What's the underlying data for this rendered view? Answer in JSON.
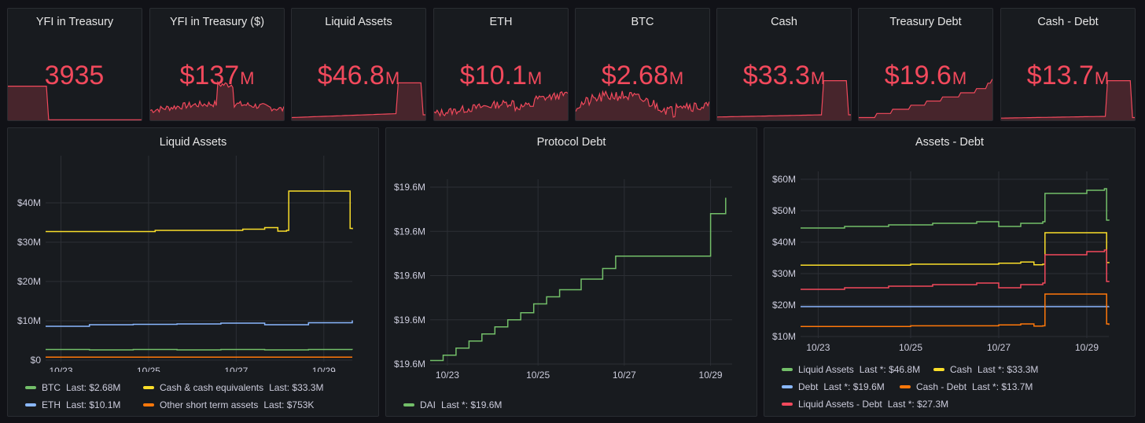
{
  "colors": {
    "stat_red": "#f2495c",
    "green": "#73bf69",
    "yellow": "#fade2a",
    "blue": "#8ab8ff",
    "orange": "#ff780a",
    "red": "#f2495c",
    "panel_bg": "#181b1f",
    "page_bg": "#111217"
  },
  "stats": [
    {
      "title": "YFI in Treasury",
      "value": "3935",
      "unit": "",
      "spark": "yfi_count"
    },
    {
      "title": "YFI in Treasury ($)",
      "value": "$137",
      "unit": "M",
      "spark": "yfi_usd"
    },
    {
      "title": "Liquid Assets",
      "value": "$46.8",
      "unit": "M",
      "spark": "liquid"
    },
    {
      "title": "ETH",
      "value": "$10.1",
      "unit": "M",
      "spark": "eth"
    },
    {
      "title": "BTC",
      "value": "$2.68",
      "unit": "M",
      "spark": "btc"
    },
    {
      "title": "Cash",
      "value": "$33.3",
      "unit": "M",
      "spark": "cash"
    },
    {
      "title": "Treasury Debt",
      "value": "$19.6",
      "unit": "M",
      "spark": "debt"
    },
    {
      "title": "Cash - Debt",
      "value": "$13.7",
      "unit": "M",
      "spark": "cashdebt"
    }
  ],
  "panels": {
    "liquid_assets": {
      "title": "Liquid Assets"
    },
    "protocol_debt": {
      "title": "Protocol Debt"
    },
    "assets_debt": {
      "title": "Assets - Debt"
    }
  },
  "chart_data": [
    {
      "type": "line",
      "title": "Liquid Assets",
      "x_ticks": [
        "10/23",
        "10/25",
        "10/27",
        "10/29"
      ],
      "y_ticks": [
        "$0",
        "$10M",
        "$20M",
        "$30M",
        "$40M"
      ],
      "ylim": [
        0,
        50
      ],
      "series": [
        {
          "name": "BTC",
          "color": "#73bf69",
          "last": "Last: $2.68M",
          "x": [
            0,
            1,
            2,
            3,
            4,
            5,
            6,
            7
          ],
          "values": [
            2.7,
            2.6,
            2.7,
            2.6,
            2.7,
            2.6,
            2.7,
            2.68
          ]
        },
        {
          "name": "Cash & cash equivalents",
          "color": "#fade2a",
          "last": "Last: $33.3M",
          "x": [
            0,
            2.5,
            4.5,
            5.0,
            5.3,
            5.5,
            5.55,
            6.9,
            6.95,
            7.0
          ],
          "values": [
            32.7,
            33.0,
            33.3,
            33.7,
            32.8,
            33.0,
            43.0,
            43.0,
            33.5,
            33.3
          ]
        },
        {
          "name": "ETH",
          "color": "#8ab8ff",
          "last": "Last: $10.1M",
          "x": [
            0,
            1,
            2,
            3,
            4,
            5,
            6,
            7
          ],
          "values": [
            8.6,
            9.0,
            9.1,
            9.2,
            9.4,
            9.0,
            9.5,
            10.1
          ]
        },
        {
          "name": "Other short term assets",
          "color": "#ff780a",
          "last": "Last: $753K",
          "x": [
            0,
            7
          ],
          "values": [
            0.75,
            0.75
          ]
        }
      ]
    },
    {
      "type": "line",
      "title": "Protocol Debt",
      "x_ticks": [
        "10/23",
        "10/25",
        "10/27",
        "10/29"
      ],
      "y_ticks": [
        "$19.6M",
        "$19.6M",
        "$19.6M",
        "$19.6M",
        "$19.6M"
      ],
      "ylim": [
        0,
        1
      ],
      "series": [
        {
          "name": "DAI",
          "color": "#73bf69",
          "last": "Last *: $19.6M",
          "x": [
            0,
            0.3,
            0.6,
            0.9,
            1.2,
            1.5,
            1.8,
            2.1,
            2.4,
            2.7,
            3.0,
            3.5,
            4.0,
            4.3,
            5.5,
            6.5,
            6.8,
            6.85
          ],
          "values": [
            0.02,
            0.05,
            0.09,
            0.13,
            0.17,
            0.21,
            0.25,
            0.29,
            0.34,
            0.38,
            0.42,
            0.48,
            0.54,
            0.61,
            0.61,
            0.85,
            0.85,
            0.94
          ]
        }
      ]
    },
    {
      "type": "line",
      "title": "Assets - Debt",
      "x_ticks": [
        "10/23",
        "10/25",
        "10/27",
        "10/29"
      ],
      "y_ticks": [
        "$10M",
        "$20M",
        "$30M",
        "$40M",
        "$50M",
        "$60M"
      ],
      "ylim": [
        10,
        60
      ],
      "series": [
        {
          "name": "Liquid Assets",
          "color": "#73bf69",
          "last": "Last *: $46.8M",
          "x": [
            0,
            1,
            2,
            3,
            4,
            4.5,
            5.0,
            5.5,
            5.55,
            6.5,
            6.9,
            6.95,
            7.0
          ],
          "values": [
            44.5,
            45.0,
            45.5,
            46.0,
            46.5,
            45.0,
            46.0,
            46.5,
            55.5,
            56.5,
            57.0,
            47.0,
            46.8
          ]
        },
        {
          "name": "Cash",
          "color": "#fade2a",
          "last": "Last *: $33.3M",
          "x": [
            0,
            2.5,
            4.5,
            5.0,
            5.3,
            5.5,
            5.55,
            6.9,
            6.95,
            7.0
          ],
          "values": [
            32.7,
            33.0,
            33.3,
            33.7,
            32.8,
            33.0,
            43.0,
            43.0,
            33.5,
            33.3
          ]
        },
        {
          "name": "Debt",
          "color": "#8ab8ff",
          "last": "Last *: $19.6M",
          "x": [
            0,
            7
          ],
          "values": [
            19.5,
            19.6
          ]
        },
        {
          "name": "Cash - Debt",
          "color": "#ff780a",
          "last": "Last *: $13.7M",
          "x": [
            0,
            2.5,
            4.5,
            5.0,
            5.3,
            5.5,
            5.55,
            6.9,
            6.95,
            7.0
          ],
          "values": [
            13.2,
            13.4,
            13.7,
            14.0,
            13.3,
            13.4,
            23.5,
            23.5,
            14.0,
            13.7
          ]
        },
        {
          "name": "Liquid Assets - Debt",
          "color": "#f2495c",
          "last": "Last *: $27.3M",
          "x": [
            0,
            1,
            2,
            3,
            4,
            4.5,
            5.0,
            5.5,
            5.55,
            6.5,
            6.9,
            6.95,
            7.0
          ],
          "values": [
            25.0,
            25.5,
            26.0,
            26.5,
            27.0,
            25.5,
            26.5,
            27.0,
            36.0,
            37.0,
            37.5,
            27.5,
            27.3
          ]
        }
      ]
    }
  ]
}
